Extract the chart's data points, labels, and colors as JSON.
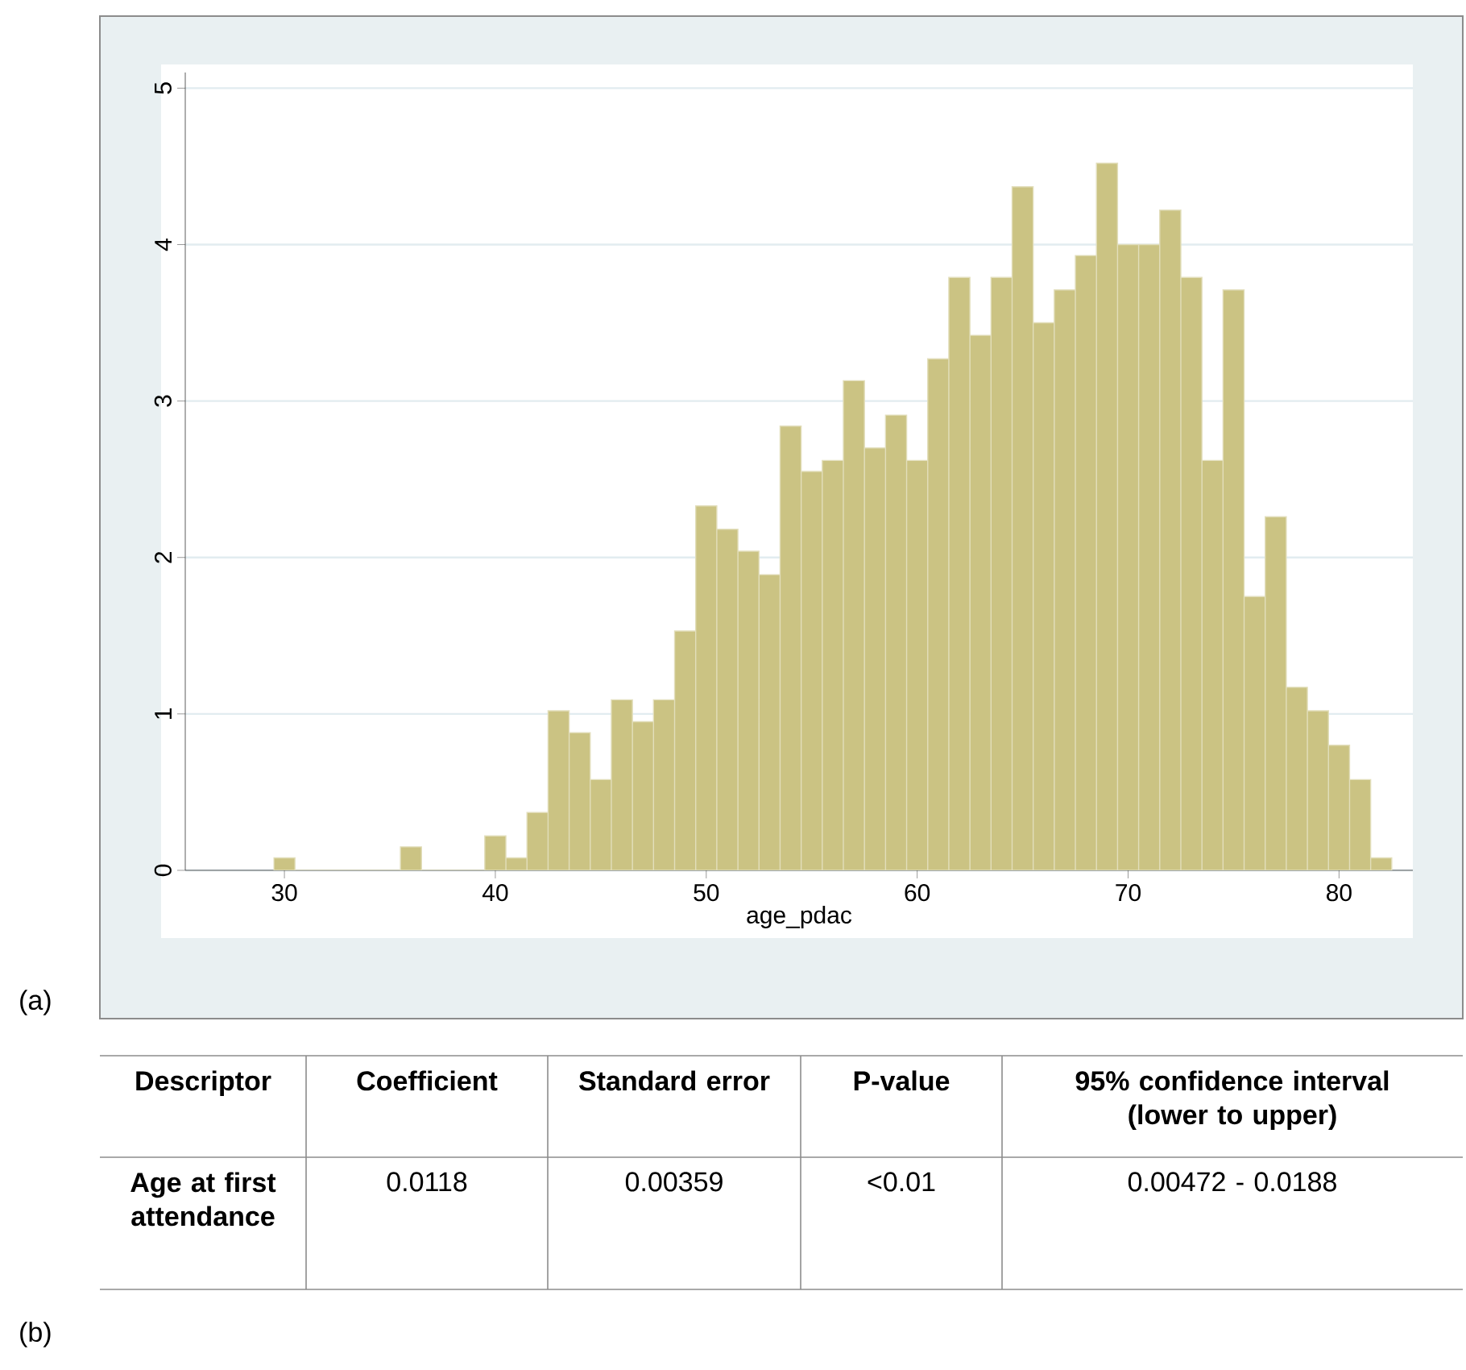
{
  "chart_data": {
    "type": "histogram",
    "xlabel": "age_pdac",
    "color": "#cbc383",
    "bins": [
      29.5,
      30.5,
      31.5,
      32.5,
      33.5,
      34.5,
      35.5,
      36.5,
      37.5,
      38.5,
      39.5,
      40.5,
      41.5,
      42.5,
      43.5,
      44.5,
      45.5,
      46.5,
      47.5,
      48.5,
      49.5,
      50.5,
      51.5,
      52.5,
      53.5,
      54.5,
      55.5,
      56.5,
      57.5,
      58.5,
      59.5,
      60.5,
      61.5,
      62.5,
      63.5,
      64.5,
      65.5,
      66.5,
      67.5,
      68.5,
      69.5,
      70.5,
      71.5,
      72.5,
      73.5,
      74.5,
      75.5,
      76.5,
      77.5,
      78.5,
      79.5,
      80.5,
      81.5,
      82.5
    ],
    "values": [
      0.08,
      0,
      0,
      0,
      0,
      0,
      0.15,
      0,
      0,
      0,
      0.22,
      0.08,
      0.37,
      1.02,
      0.88,
      0.58,
      1.09,
      0.95,
      1.09,
      1.53,
      2.33,
      2.18,
      2.04,
      1.89,
      2.84,
      2.55,
      2.62,
      3.13,
      2.7,
      2.91,
      2.62,
      3.27,
      3.79,
      3.42,
      3.79,
      4.37,
      3.5,
      3.71,
      3.93,
      4.52,
      4.0,
      4.0,
      4.22,
      3.79,
      2.62,
      3.71,
      1.75,
      2.26,
      1.17,
      1.02,
      0.8,
      0.58,
      0.08
    ],
    "xlim": [
      25.3,
      83.5
    ],
    "ylim": [
      0,
      5.1
    ],
    "xticks": [
      30,
      40,
      50,
      60,
      70,
      80
    ],
    "yticks": [
      0,
      1,
      2,
      3,
      4,
      5
    ],
    "grid": "y",
    "annotations": [
      "(a)",
      "**Descriptor**",
      "**Coefficient**",
      "**Standard error**",
      "**P-value**",
      "**95% confidence interval (lower to upper)**",
      "**Age at first attendance**",
      "0.0118",
      "0.00359",
      "<0.01",
      "0.00472 - 0.0188",
      "(b)"
    ]
  }
}
